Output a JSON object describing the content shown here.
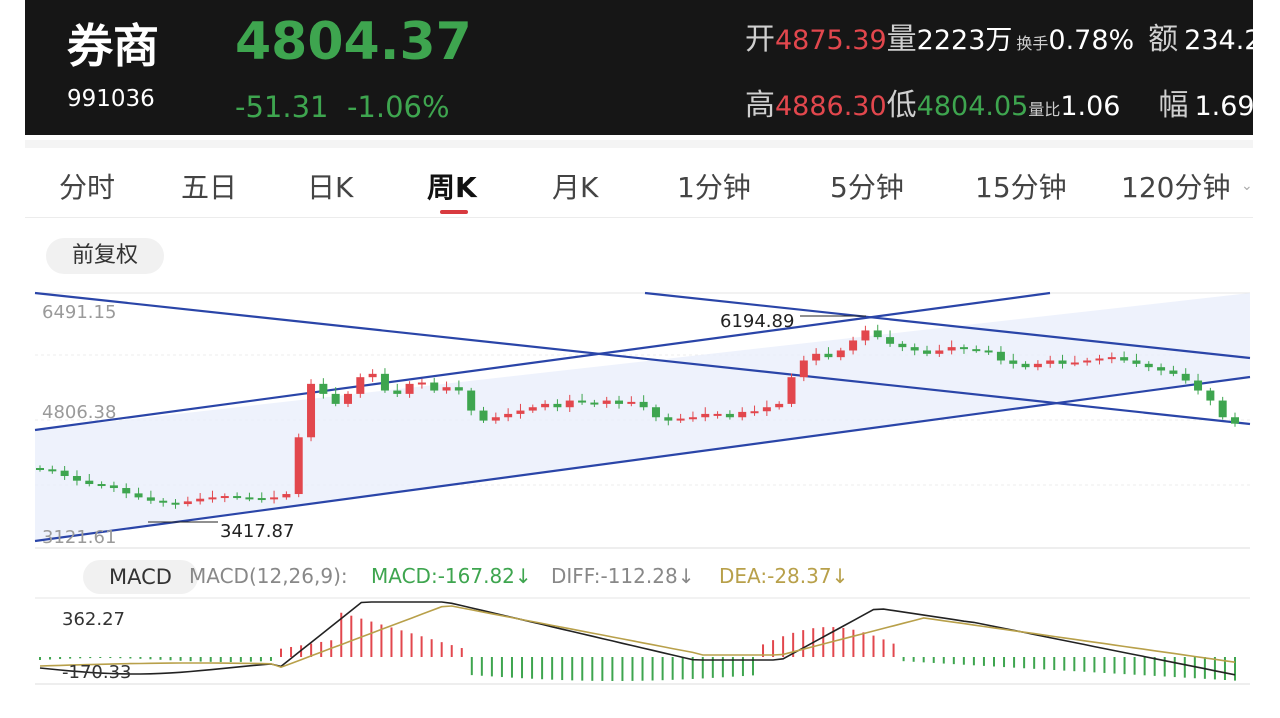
{
  "header": {
    "name": "券商",
    "code": "991036",
    "price": "4804.37",
    "change": "-51.31",
    "change_pct": "-1.06%",
    "open_label": "开",
    "open": "4875.39",
    "volume_label": "量",
    "volume": "2223万",
    "turnover_label": "换手",
    "turnover": "0.78%",
    "amount_label": "额",
    "amount": "234.2",
    "high_label": "高",
    "high": "4886.30",
    "low_label": "低",
    "low": "4804.05",
    "volratio_label": "量比",
    "volratio": "1.06",
    "amp_label": "幅",
    "amp": "1.69"
  },
  "tabs": [
    "分时",
    "五日",
    "日K",
    "周K",
    "月K",
    "1分钟",
    "5分钟",
    "15分钟",
    "120分钟"
  ],
  "active_tab": "周K",
  "adjust_button": "前复权",
  "kline": {
    "y_top": "6491.15",
    "y_mid": "4806.38",
    "y_bottom": "3121.61",
    "max_label": "6194.89",
    "min_label": "3417.87"
  },
  "macd": {
    "pill": "MACD",
    "params": "MACD(12,26,9):",
    "macd": "MACD:-167.82↓",
    "diff": "DIFF:-112.28↓",
    "dea": "DEA:-28.37↓",
    "y_top": "362.27",
    "y_bottom": "-170.33"
  },
  "colors": {
    "up": "#e2474d",
    "down": "#3ea54f",
    "channel": "#2a45a8",
    "channel_fill": "#e8eefb",
    "dea_line": "#b8a04a",
    "diff_line": "#222222"
  }
}
